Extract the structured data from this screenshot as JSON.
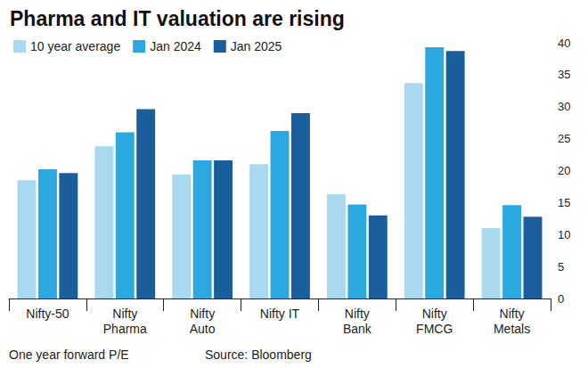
{
  "chart_data": {
    "type": "bar",
    "title": "Pharma and IT valuation are rising",
    "categories": [
      "Nifty-50",
      "Nifty\nPharma",
      "Nifty\nAuto",
      "Nifty IT",
      "Nifty\nBank",
      "Nifty\nFMCG",
      "Nifty\nMetals"
    ],
    "series": [
      {
        "name": "10 year average",
        "color": "#a9d9f0",
        "values": [
          18.5,
          23.8,
          19.4,
          21.0,
          16.3,
          33.7,
          11.0
        ]
      },
      {
        "name": "Jan 2024",
        "color": "#2ba8e0",
        "values": [
          20.2,
          26.0,
          21.6,
          26.2,
          14.7,
          39.3,
          14.6
        ]
      },
      {
        "name": "Jan 2025",
        "color": "#1b5e9c",
        "values": [
          19.6,
          29.6,
          21.6,
          29.0,
          13.0,
          38.7,
          12.8
        ]
      }
    ],
    "ylim": [
      0,
      40
    ],
    "yticks": [
      0,
      5,
      10,
      15,
      20,
      25,
      30,
      35,
      40
    ],
    "grid": false,
    "legend": "top-left",
    "annotations": [
      "One year forward P/E",
      "Source: Bloomberg"
    ]
  }
}
